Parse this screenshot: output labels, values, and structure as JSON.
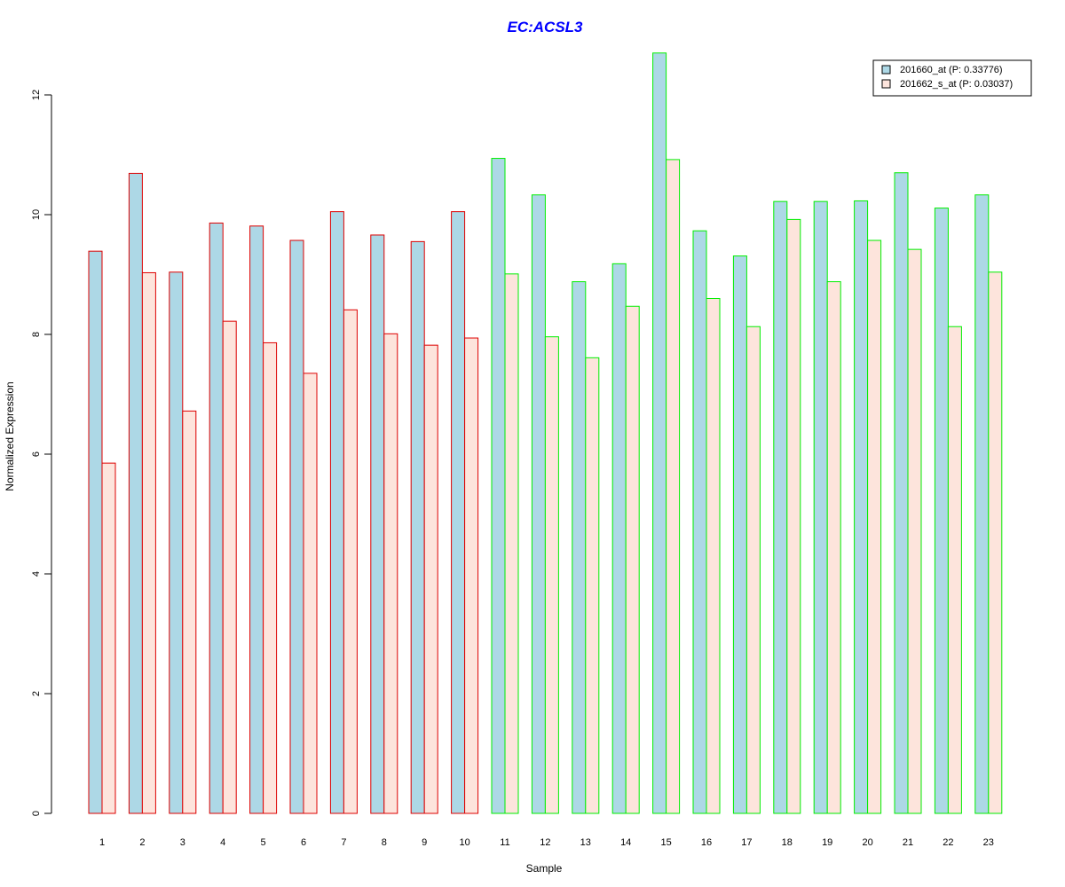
{
  "chart_data": {
    "type": "bar",
    "title": "EC:ACSL3",
    "xlabel": "Sample",
    "ylabel": "Normalized Expression",
    "ylim": [
      0,
      12
    ],
    "yticks": [
      0,
      2,
      4,
      6,
      8,
      10,
      12
    ],
    "categories": [
      "1",
      "2",
      "3",
      "4",
      "5",
      "6",
      "7",
      "8",
      "9",
      "10",
      "11",
      "12",
      "13",
      "14",
      "15",
      "16",
      "17",
      "18",
      "19",
      "20",
      "21",
      "22",
      "23"
    ],
    "series": [
      {
        "name": "201660_at (P: 0.33776)",
        "fill": "#add8e6",
        "values": [
          9.39,
          10.69,
          9.04,
          9.86,
          9.81,
          9.57,
          10.05,
          9.66,
          9.55,
          10.05,
          10.94,
          10.33,
          8.88,
          9.18,
          12.7,
          9.73,
          9.31,
          10.22,
          10.22,
          10.23,
          10.7,
          10.11,
          10.33
        ]
      },
      {
        "name": "201662_s_at (P: 0.03037)",
        "fill": "#fde4dc",
        "values": [
          5.85,
          9.03,
          6.72,
          8.22,
          7.86,
          7.35,
          8.41,
          8.01,
          7.82,
          7.94,
          9.01,
          7.96,
          7.61,
          8.47,
          10.92,
          8.6,
          8.13,
          9.92,
          8.88,
          9.57,
          9.42,
          8.13,
          9.04
        ]
      }
    ],
    "groups": [
      {
        "border": "#dd0000",
        "samples": [
          1,
          2,
          3,
          4,
          5,
          6,
          7,
          8,
          9,
          10
        ]
      },
      {
        "border": "#00ee00",
        "samples": [
          11,
          12,
          13,
          14,
          15,
          16,
          17,
          18,
          19,
          20,
          21,
          22,
          23
        ]
      }
    ],
    "legend_position": "top-right",
    "grid": false
  }
}
